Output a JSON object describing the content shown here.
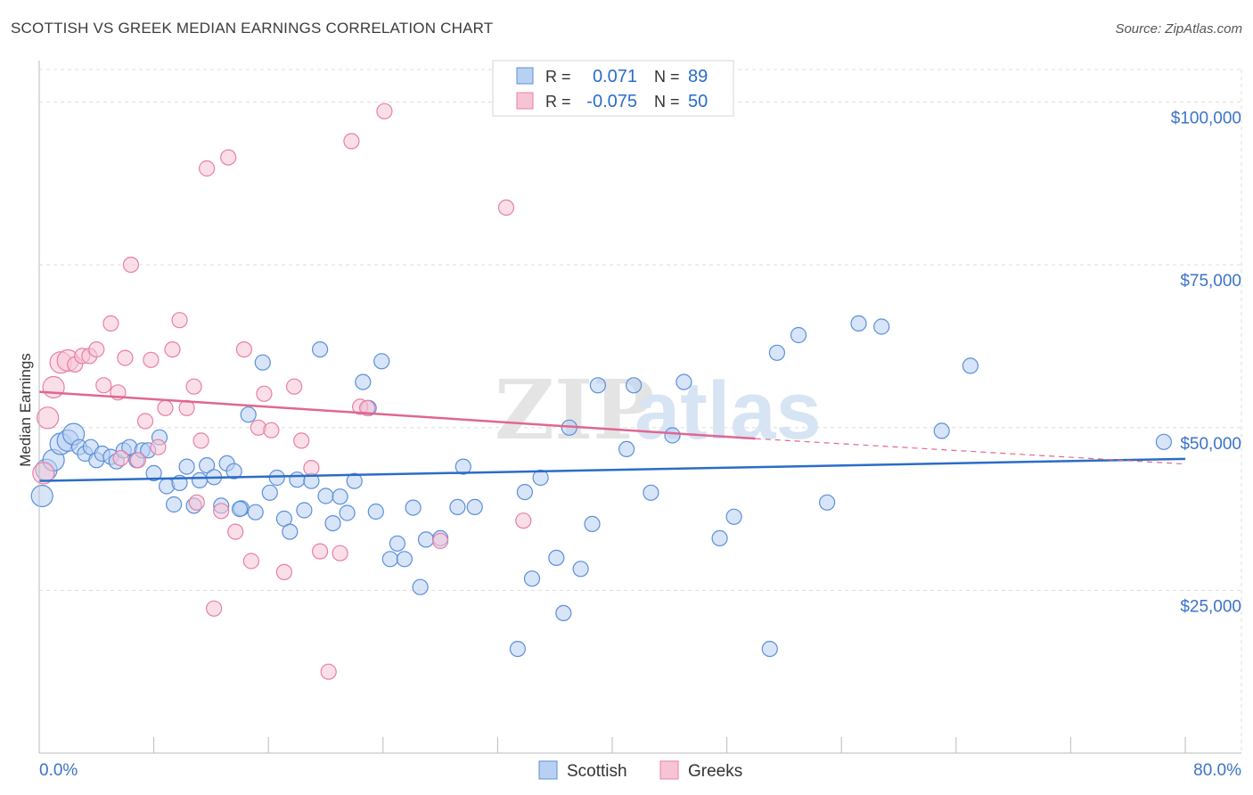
{
  "header": {
    "title": "SCOTTISH VS GREEK MEDIAN EARNINGS CORRELATION CHART",
    "source": "Source: ZipAtlas.com"
  },
  "watermark": {
    "part1": "ZIP",
    "part2": "atlas"
  },
  "colors": {
    "scottish": "#5b8fd9",
    "scottish_fill": "#b8d0f2",
    "greeks": "#e87fa3",
    "greeks_fill": "#f7c4d5",
    "scottish_line": "#2b6cc9",
    "greeks_line": "#e0678f",
    "axis_text": "#3b73c7",
    "grid": "#dddddd"
  },
  "legend_top": [
    {
      "r_label": "R =",
      "r_value": "0.071",
      "n_label": "N =",
      "n_value": "89"
    },
    {
      "r_label": "R =",
      "r_value": "-0.075",
      "n_label": "N =",
      "n_value": "50"
    }
  ],
  "chart_data": {
    "type": "scatter",
    "xlabel": "",
    "ylabel": "Median Earnings",
    "xlim": [
      0,
      80
    ],
    "ylim": [
      0,
      105000
    ],
    "x_tick_labels": [
      "0.0%",
      "80.0%"
    ],
    "y_ticks": [
      25000,
      50000,
      75000,
      100000
    ],
    "y_tick_labels": [
      "$25,000",
      "$50,000",
      "$75,000",
      "$100,000"
    ],
    "grid": true,
    "legend_position": "bottom-center",
    "series": [
      {
        "name": "Scottish",
        "trend": [
          [
            0,
            41800
          ],
          [
            80,
            45200
          ]
        ],
        "points": [
          [
            0.2,
            39500
          ],
          [
            0.5,
            43500
          ],
          [
            1.0,
            45000
          ],
          [
            1.5,
            47500
          ],
          [
            2.0,
            48000
          ],
          [
            2.4,
            49000
          ],
          [
            2.8,
            47000
          ],
          [
            3.2,
            46000
          ],
          [
            3.6,
            47000
          ],
          [
            4.0,
            45000
          ],
          [
            4.4,
            46000
          ],
          [
            5.0,
            45500
          ],
          [
            5.4,
            44800
          ],
          [
            5.9,
            46500
          ],
          [
            6.3,
            47000
          ],
          [
            6.8,
            45000
          ],
          [
            7.2,
            46500
          ],
          [
            7.6,
            46500
          ],
          [
            8.0,
            43000
          ],
          [
            8.4,
            48500
          ],
          [
            8.9,
            41000
          ],
          [
            9.4,
            38200
          ],
          [
            9.8,
            41500
          ],
          [
            10.3,
            44000
          ],
          [
            10.8,
            38000
          ],
          [
            11.2,
            41900
          ],
          [
            11.7,
            44200
          ],
          [
            12.2,
            42400
          ],
          [
            12.7,
            38000
          ],
          [
            13.1,
            44500
          ],
          [
            13.6,
            43300
          ],
          [
            14.1,
            37600
          ],
          [
            14.6,
            52000
          ],
          [
            15.1,
            37000
          ],
          [
            15.6,
            60000
          ],
          [
            16.1,
            40000
          ],
          [
            16.6,
            42300
          ],
          [
            17.1,
            36000
          ],
          [
            17.5,
            34000
          ],
          [
            18.0,
            42000
          ],
          [
            18.5,
            37300
          ],
          [
            19.0,
            41800
          ],
          [
            19.6,
            62000
          ],
          [
            20.0,
            39500
          ],
          [
            20.5,
            35300
          ],
          [
            21.0,
            39400
          ],
          [
            21.5,
            36900
          ],
          [
            22.0,
            41800
          ],
          [
            22.6,
            57000
          ],
          [
            23.0,
            53000
          ],
          [
            23.5,
            37100
          ],
          [
            23.9,
            60200
          ],
          [
            24.5,
            29800
          ],
          [
            25.0,
            32200
          ],
          [
            25.5,
            29800
          ],
          [
            26.1,
            37700
          ],
          [
            26.6,
            25500
          ],
          [
            27.0,
            32800
          ],
          [
            28.0,
            33000
          ],
          [
            29.2,
            37800
          ],
          [
            29.6,
            44000
          ],
          [
            30.4,
            37800
          ],
          [
            33.4,
            16000
          ],
          [
            33.9,
            40100
          ],
          [
            34.4,
            26800
          ],
          [
            35.0,
            42300
          ],
          [
            36.1,
            30000
          ],
          [
            36.6,
            21500
          ],
          [
            37.0,
            50000
          ],
          [
            37.8,
            28300
          ],
          [
            38.6,
            35200
          ],
          [
            39.0,
            56500
          ],
          [
            41.0,
            46700
          ],
          [
            41.5,
            56500
          ],
          [
            42.7,
            40000
          ],
          [
            44.2,
            48800
          ],
          [
            45.0,
            57000
          ],
          [
            47.5,
            33000
          ],
          [
            48.5,
            36300
          ],
          [
            51.0,
            16000
          ],
          [
            51.5,
            61500
          ],
          [
            53.0,
            64200
          ],
          [
            55.0,
            38500
          ],
          [
            57.2,
            66000
          ],
          [
            58.8,
            65500
          ],
          [
            63.0,
            49500
          ],
          [
            65.0,
            59500
          ],
          [
            78.5,
            47800
          ],
          [
            14.0,
            37500
          ]
        ]
      },
      {
        "name": "Greeks",
        "trend": [
          [
            0,
            55500
          ],
          [
            50,
            48300
          ]
        ],
        "trend_ext": [
          [
            50,
            48300
          ],
          [
            80,
            44400
          ]
        ],
        "points": [
          [
            0.3,
            43000
          ],
          [
            0.6,
            51500
          ],
          [
            1.0,
            56200
          ],
          [
            1.5,
            60000
          ],
          [
            2.0,
            60300
          ],
          [
            2.5,
            59700
          ],
          [
            3.0,
            61000
          ],
          [
            3.5,
            61000
          ],
          [
            4.0,
            62000
          ],
          [
            4.5,
            56500
          ],
          [
            5.0,
            66000
          ],
          [
            5.5,
            55400
          ],
          [
            6.0,
            60700
          ],
          [
            6.4,
            75000
          ],
          [
            6.9,
            45000
          ],
          [
            7.4,
            51000
          ],
          [
            7.8,
            60400
          ],
          [
            8.3,
            47000
          ],
          [
            8.8,
            53000
          ],
          [
            9.3,
            62000
          ],
          [
            9.8,
            66500
          ],
          [
            10.3,
            53000
          ],
          [
            10.8,
            56300
          ],
          [
            11.3,
            48000
          ],
          [
            11.7,
            89800
          ],
          [
            12.2,
            22200
          ],
          [
            12.7,
            37200
          ],
          [
            13.2,
            91500
          ],
          [
            13.7,
            34000
          ],
          [
            14.3,
            62000
          ],
          [
            14.8,
            29500
          ],
          [
            15.3,
            50000
          ],
          [
            15.7,
            55200
          ],
          [
            16.2,
            49600
          ],
          [
            17.1,
            27800
          ],
          [
            17.8,
            56300
          ],
          [
            18.3,
            48000
          ],
          [
            19.0,
            43800
          ],
          [
            19.6,
            31000
          ],
          [
            20.2,
            12500
          ],
          [
            21.0,
            30700
          ],
          [
            21.8,
            94000
          ],
          [
            22.4,
            53200
          ],
          [
            22.9,
            53000
          ],
          [
            24.1,
            98600
          ],
          [
            28.0,
            32600
          ],
          [
            32.6,
            83800
          ],
          [
            33.8,
            35700
          ],
          [
            5.7,
            45300
          ],
          [
            11.0,
            38500
          ]
        ]
      }
    ]
  }
}
